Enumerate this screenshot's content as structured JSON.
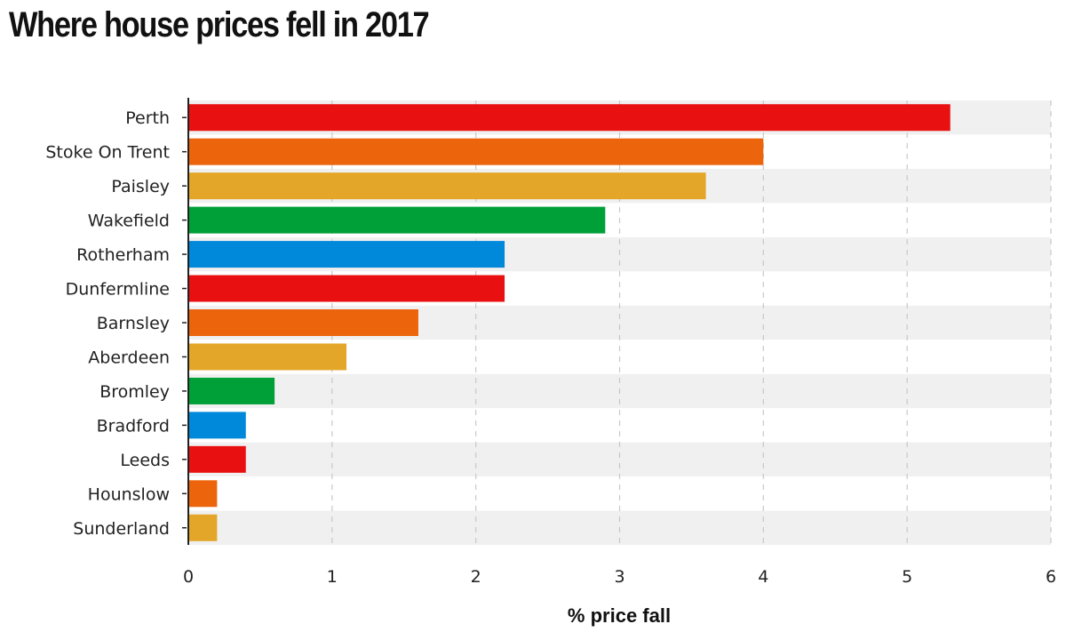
{
  "title": "Where house prices fell in 2017",
  "chart_data": {
    "type": "bar",
    "orientation": "horizontal",
    "title": "Where house prices fell in 2017",
    "xlabel": "% price fall",
    "ylabel": "",
    "xlim": [
      0,
      6
    ],
    "xticks": [
      0,
      1,
      2,
      3,
      4,
      5,
      6
    ],
    "grid": true,
    "categories": [
      "Perth",
      "Stoke On Trent",
      "Paisley",
      "Wakefield",
      "Rotherham",
      "Dunfermline",
      "Barnsley",
      "Aberdeen",
      "Bromley",
      "Bradford",
      "Leeds",
      "Hounslow",
      "Sunderland"
    ],
    "values": [
      5.3,
      4.0,
      3.6,
      2.9,
      2.2,
      2.2,
      1.6,
      1.1,
      0.6,
      0.4,
      0.4,
      0.2,
      0.2
    ],
    "colors": [
      "#e81010",
      "#ec640c",
      "#e4a628",
      "#00a039",
      "#0088da",
      "#e81010",
      "#ec640c",
      "#e4a628",
      "#00a039",
      "#0088da",
      "#e81010",
      "#ec640c",
      "#e4a628"
    ],
    "band_colors": [
      "#f0f0f0",
      "#ffffff"
    ],
    "grid_color": "#c8c8c8"
  }
}
